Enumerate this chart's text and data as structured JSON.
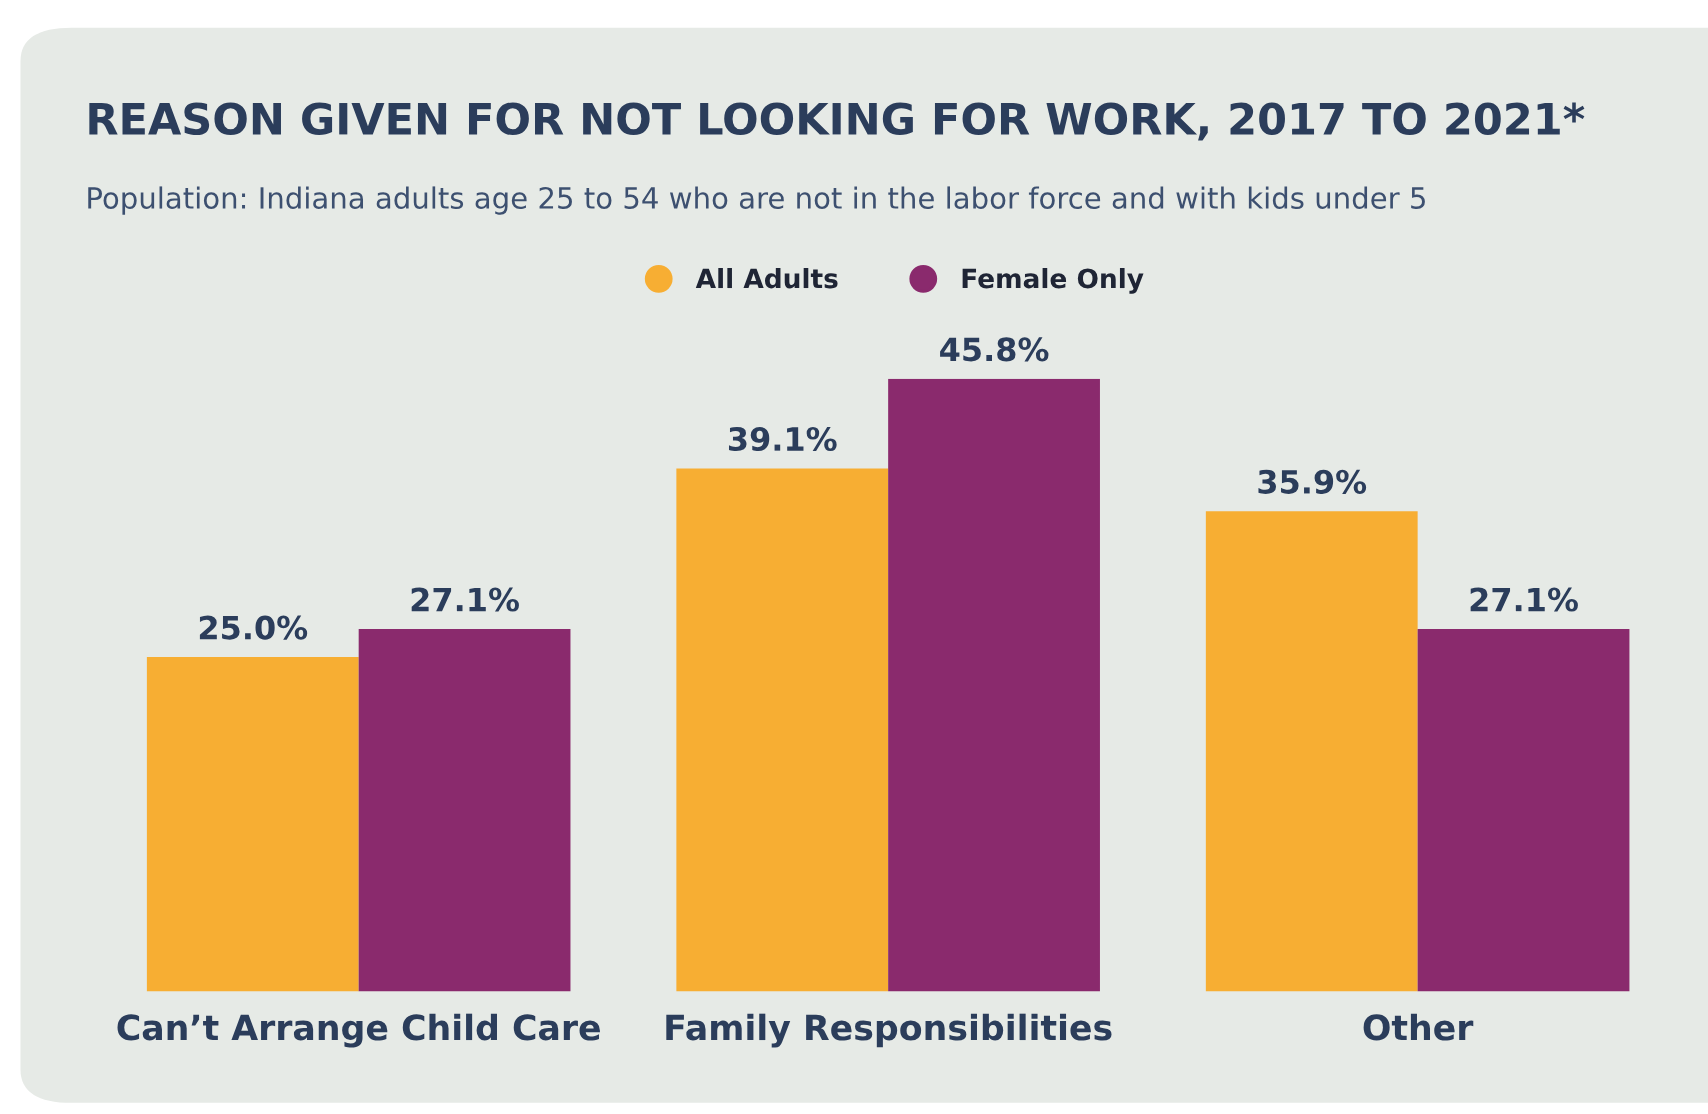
{
  "chart_data": {
    "type": "bar",
    "title": "REASON GIVEN FOR NOT LOOKING FOR WORK, 2017 TO 2021*",
    "subtitle": "Population: Indiana adults age 25 to 54 who are not in the labor force and with kids under 5",
    "categories": [
      "Can’t Arrange Child Care",
      "Family Responsibilities",
      "Other"
    ],
    "series": [
      {
        "name": "All Adults",
        "color": "#f7ae33",
        "values": [
          25.0,
          39.1,
          35.9
        ],
        "value_labels": [
          "25.0%",
          "39.1%",
          "35.9%"
        ]
      },
      {
        "name": "Female Only",
        "color": "#8a2a6d",
        "values": [
          27.1,
          45.8,
          27.1
        ],
        "value_labels": [
          "27.1%",
          "45.8%",
          "27.1%"
        ]
      }
    ],
    "legend": "top",
    "grid": false
  }
}
